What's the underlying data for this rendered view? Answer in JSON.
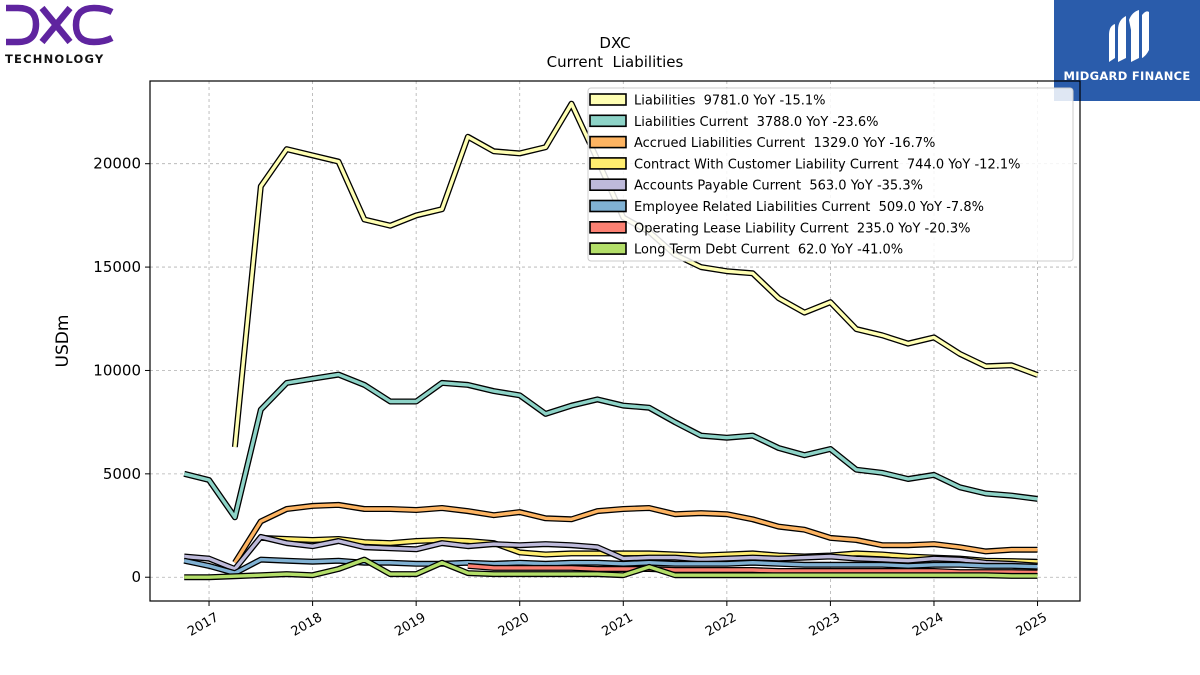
{
  "brand_left": {
    "wordmark": "DXC",
    "subtitle": "TECHNOLOGY"
  },
  "brand_right": {
    "name": "MIDGARD FINANCE"
  },
  "colors": {
    "dxc_purple": "#5f249f",
    "midgard_blue": "#2a5cab"
  },
  "chart_data": {
    "type": "line",
    "title": "DXC",
    "subtitle": "Current  Liabilities",
    "ylabel": "USDm",
    "xlabel": "",
    "ylim": [
      -1150,
      24000
    ],
    "xlim": [
      2016.43,
      2025.41
    ],
    "yticks": [
      0,
      5000,
      10000,
      15000,
      20000
    ],
    "xticks": [
      2017,
      2018,
      2019,
      2020,
      2021,
      2022,
      2023,
      2024,
      2025
    ],
    "grid": true,
    "legend_position": "top-right",
    "x": [
      2016.76,
      2017.0,
      2017.25,
      2017.5,
      2017.75,
      2018.0,
      2018.25,
      2018.5,
      2018.75,
      2019.0,
      2019.25,
      2019.5,
      2019.75,
      2020.0,
      2020.25,
      2020.5,
      2020.75,
      2021.0,
      2021.25,
      2021.5,
      2021.75,
      2022.0,
      2022.25,
      2022.5,
      2022.75,
      2023.0,
      2023.25,
      2023.5,
      2023.75,
      2024.0,
      2024.25,
      2024.5,
      2024.75,
      2025.0
    ],
    "series": [
      {
        "name": "Liabilities",
        "legend": "Liabilities  9781.0 YoY -15.1%",
        "color": "#ffffb3",
        "values": [
          null,
          null,
          6300,
          18900,
          20700,
          20400,
          20100,
          17300,
          17000,
          17500,
          17800,
          21300,
          20600,
          20500,
          20800,
          22900,
          20200,
          17400,
          16700,
          15600,
          15000,
          14800,
          14700,
          13500,
          12800,
          13300,
          12000,
          11700,
          11300,
          11600,
          10800,
          10200,
          10250,
          9781
        ]
      },
      {
        "name": "Liabilities Current",
        "legend": "Liabilities Current  3788.0 YoY -23.6%",
        "color": "#8dd3c7",
        "values": [
          5000,
          4700,
          2900,
          8100,
          9400,
          9600,
          9800,
          9300,
          8500,
          8500,
          9400,
          9300,
          9000,
          8800,
          7900,
          8300,
          8600,
          8300,
          8200,
          7500,
          6850,
          6750,
          6850,
          6250,
          5900,
          6200,
          5200,
          5050,
          4750,
          4950,
          4350,
          4050,
          3950,
          3788
        ]
      },
      {
        "name": "Accrued Liabilities Current",
        "legend": "Accrued Liabilities Current  1329.0 YoY -16.7%",
        "color": "#fdb462",
        "values": [
          null,
          null,
          700,
          2700,
          3300,
          3450,
          3500,
          3300,
          3300,
          3250,
          3350,
          3200,
          3000,
          3150,
          2850,
          2800,
          3200,
          3300,
          3350,
          3050,
          3100,
          3050,
          2800,
          2450,
          2300,
          1900,
          1800,
          1550,
          1550,
          1600,
          1450,
          1250,
          1330,
          1329
        ]
      },
      {
        "name": "Contract With Customer Liability Current",
        "legend": "Contract With Customer Liability Current  744.0 YoY -12.1%",
        "color": "#ffed6f",
        "values": [
          null,
          null,
          null,
          1900,
          1850,
          1800,
          1850,
          1700,
          1650,
          1750,
          1800,
          1750,
          1650,
          1200,
          1100,
          1150,
          1150,
          1150,
          1150,
          1100,
          1050,
          1100,
          1150,
          1050,
          1000,
          1050,
          1150,
          1100,
          1000,
          950,
          900,
          800,
          780,
          744
        ]
      },
      {
        "name": "Accounts Payable Current",
        "legend": "Accounts Payable Current  563.0 YoY -35.3%",
        "color": "#bebada",
        "values": [
          1000,
          900,
          400,
          1950,
          1650,
          1500,
          1750,
          1450,
          1400,
          1350,
          1650,
          1500,
          1600,
          1550,
          1600,
          1550,
          1450,
          900,
          950,
          950,
          850,
          900,
          950,
          900,
          950,
          1000,
          900,
          850,
          800,
          900,
          850,
          700,
          650,
          563
        ]
      },
      {
        "name": "Employee Related Liabilities Current",
        "legend": "Employee Related Liabilities Current  509.0 YoY -7.8%",
        "color": "#80b1d3",
        "values": [
          800,
          550,
          200,
          850,
          800,
          750,
          800,
          700,
          700,
          650,
          650,
          700,
          650,
          700,
          650,
          700,
          700,
          650,
          700,
          650,
          650,
          650,
          700,
          650,
          600,
          600,
          600,
          600,
          550,
          600,
          600,
          550,
          550,
          509
        ]
      },
      {
        "name": "Operating Lease Liability Current",
        "legend": "Operating Lease Liability Current  235.0 YoY -20.3%",
        "color": "#fb8072",
        "values": [
          null,
          null,
          null,
          null,
          null,
          null,
          null,
          null,
          null,
          null,
          null,
          550,
          450,
          450,
          450,
          450,
          400,
          400,
          400,
          350,
          350,
          350,
          350,
          300,
          300,
          300,
          300,
          300,
          300,
          300,
          250,
          250,
          250,
          235
        ]
      },
      {
        "name": "Long Term Debt Current",
        "legend": "Long Term Debt Current  62.0 YoY -41.0%",
        "color": "#b3de69",
        "values": [
          0,
          0,
          50,
          100,
          150,
          100,
          400,
          850,
          150,
          150,
          700,
          200,
          150,
          150,
          150,
          150,
          150,
          100,
          500,
          100,
          100,
          100,
          100,
          100,
          100,
          100,
          100,
          100,
          100,
          100,
          100,
          100,
          62,
          62
        ]
      }
    ]
  }
}
